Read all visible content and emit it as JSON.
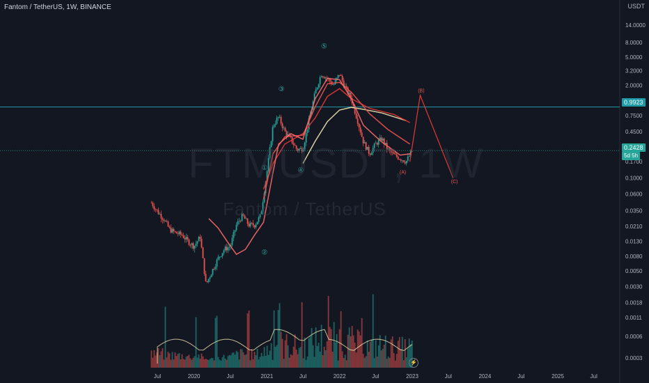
{
  "header": {
    "symbol_line": "Fantom / TetherUS, 1W, BINANCE"
  },
  "watermark": {
    "ticker": "FTMUSDT, 1W",
    "name": "Fantom / TetherUS"
  },
  "axis": {
    "currency": "USDT"
  },
  "price_badges": {
    "horizontal_line": "0.9923",
    "last_price": "0.2428",
    "countdown": "5d 5h"
  },
  "chart_data": {
    "type": "candlestick",
    "title": "Fantom / TetherUS, 1W, BINANCE",
    "y_scale": "log",
    "y_ticks": [
      "14.0000",
      "8.0000",
      "5.0000",
      "3.2000",
      "2.0000",
      "1.2000",
      "0.7500",
      "0.4500",
      "0.2700",
      "0.1700",
      "0.1000",
      "0.0600",
      "0.0350",
      "0.0210",
      "0.0130",
      "0.0080",
      "0.0050",
      "0.0030",
      "0.0018",
      "0.0011",
      "0.0006",
      "0.0003"
    ],
    "x_ticks": [
      "Jul",
      "2020",
      "Jul",
      "2021",
      "Jul",
      "2022",
      "Jul",
      "2023",
      "Jul",
      "2024",
      "Jul",
      "2025",
      "Jul"
    ],
    "horizontal_line": 0.9923,
    "last_price": 0.2428,
    "price_path": [
      [
        "2019-06-01",
        0.045
      ],
      [
        "2019-07-01",
        0.034
      ],
      [
        "2019-08-01",
        0.027
      ],
      [
        "2019-09-01",
        0.019
      ],
      [
        "2019-10-01",
        0.017
      ],
      [
        "2019-11-01",
        0.016
      ],
      [
        "2019-12-01",
        0.013
      ],
      [
        "2020-01-01",
        0.011
      ],
      [
        "2020-02-01",
        0.015
      ],
      [
        "2020-03-01",
        0.0032
      ],
      [
        "2020-04-01",
        0.005
      ],
      [
        "2020-05-01",
        0.0075
      ],
      [
        "2020-06-01",
        0.01
      ],
      [
        "2020-07-01",
        0.011
      ],
      [
        "2020-08-01",
        0.022
      ],
      [
        "2020-09-01",
        0.03
      ],
      [
        "2020-10-01",
        0.022
      ],
      [
        "2020-11-01",
        0.022
      ],
      [
        "2020-12-01",
        0.03
      ],
      [
        "2021-01-01",
        0.12
      ],
      [
        "2021-02-01",
        0.55
      ],
      [
        "2021-03-01",
        0.72
      ],
      [
        "2021-04-01",
        0.45
      ],
      [
        "2021-05-01",
        0.35
      ],
      [
        "2021-06-01",
        0.25
      ],
      [
        "2021-07-01",
        0.26
      ],
      [
        "2021-08-01",
        0.65
      ],
      [
        "2021-09-01",
        1.6
      ],
      [
        "2021-10-01",
        2.9
      ],
      [
        "2021-11-01",
        2.5
      ],
      [
        "2021-12-01",
        2.0
      ],
      [
        "2022-01-01",
        2.9
      ],
      [
        "2022-02-01",
        1.8
      ],
      [
        "2022-03-01",
        1.3
      ],
      [
        "2022-04-01",
        0.65
      ],
      [
        "2022-05-01",
        0.32
      ],
      [
        "2022-06-01",
        0.22
      ],
      [
        "2022-07-01",
        0.3
      ],
      [
        "2022-08-01",
        0.36
      ],
      [
        "2022-09-01",
        0.25
      ],
      [
        "2022-10-01",
        0.21
      ],
      [
        "2022-11-01",
        0.19
      ],
      [
        "2022-12-01",
        0.17
      ],
      [
        "2023-01-01",
        0.2428
      ]
    ],
    "wave_labels": [
      {
        "label": "①",
        "x": "2020-12-20",
        "y": 0.13
      },
      {
        "label": "②",
        "x": "2020-12-20",
        "y": 0.0085
      },
      {
        "label": "③",
        "x": "2021-03-15",
        "y": 1.65
      },
      {
        "label": "④",
        "x": "2021-06-20",
        "y": 0.12
      },
      {
        "label": "⑤",
        "x": "2021-10-15",
        "y": 6.6
      },
      {
        "label": "(A)",
        "x": "2022-11-15",
        "y": 0.115
      },
      {
        "label": "(B)",
        "x": "2023-02-15",
        "y": 1.6
      },
      {
        "label": "(C)",
        "x": "2023-08-01",
        "y": 0.085
      }
    ],
    "projection": [
      [
        "2022-12-20",
        0.17
      ],
      [
        "2023-02-10",
        1.45
      ],
      [
        "2023-07-25",
        0.1
      ]
    ],
    "moving_averages": [
      {
        "color": "#f0e6b0",
        "points": [
          [
            "2021-07-01",
            0.16
          ],
          [
            "2021-09-01",
            0.33
          ],
          [
            "2021-11-01",
            0.62
          ],
          [
            "2022-01-01",
            0.9
          ],
          [
            "2022-03-01",
            0.98
          ],
          [
            "2022-05-01",
            0.92
          ],
          [
            "2022-08-01",
            0.82
          ],
          [
            "2022-12-01",
            0.64
          ]
        ]
      },
      {
        "color": "#e53935",
        "points": [
          [
            "2020-12-15",
            0.07
          ],
          [
            "2021-02-01",
            0.16
          ],
          [
            "2021-04-01",
            0.3
          ],
          [
            "2021-07-01",
            0.42
          ],
          [
            "2021-09-01",
            0.7
          ],
          [
            "2021-11-01",
            1.4
          ],
          [
            "2022-01-01",
            1.8
          ],
          [
            "2022-03-01",
            1.3
          ],
          [
            "2022-06-01",
            0.95
          ],
          [
            "2022-10-01",
            0.78
          ],
          [
            "2022-12-20",
            0.6
          ]
        ]
      },
      {
        "color": "#ef5350",
        "points": [
          [
            "2020-12-15",
            0.05
          ],
          [
            "2021-02-01",
            0.22
          ],
          [
            "2021-04-01",
            0.38
          ],
          [
            "2021-07-01",
            0.4
          ],
          [
            "2021-09-01",
            1.0
          ],
          [
            "2021-11-01",
            2.1
          ],
          [
            "2022-01-01",
            2.2
          ],
          [
            "2022-03-01",
            1.6
          ],
          [
            "2022-06-01",
            0.8
          ],
          [
            "2022-09-01",
            0.48
          ],
          [
            "2022-12-20",
            0.3
          ]
        ]
      },
      {
        "color": "#ff6b6b",
        "points": [
          [
            "2020-03-15",
            0.027
          ],
          [
            "2020-05-01",
            0.02
          ],
          [
            "2020-06-15",
            0.013
          ],
          [
            "2020-08-01",
            0.0085
          ],
          [
            "2020-09-15",
            0.01
          ],
          [
            "2020-11-01",
            0.016
          ],
          [
            "2020-12-15",
            0.024
          ],
          [
            "2021-02-01",
            0.12
          ],
          [
            "2021-03-01",
            0.3
          ],
          [
            "2021-05-01",
            0.42
          ],
          [
            "2021-07-01",
            0.35
          ],
          [
            "2021-09-01",
            1.3
          ],
          [
            "2021-11-01",
            2.5
          ],
          [
            "2022-01-01",
            2.4
          ],
          [
            "2022-03-01",
            1.3
          ],
          [
            "2022-05-01",
            0.55
          ],
          [
            "2022-08-01",
            0.32
          ],
          [
            "2022-11-01",
            0.21
          ],
          [
            "2022-12-25",
            0.22
          ]
        ]
      }
    ],
    "volume_panel": true,
    "grid": false,
    "legend": "none"
  }
}
